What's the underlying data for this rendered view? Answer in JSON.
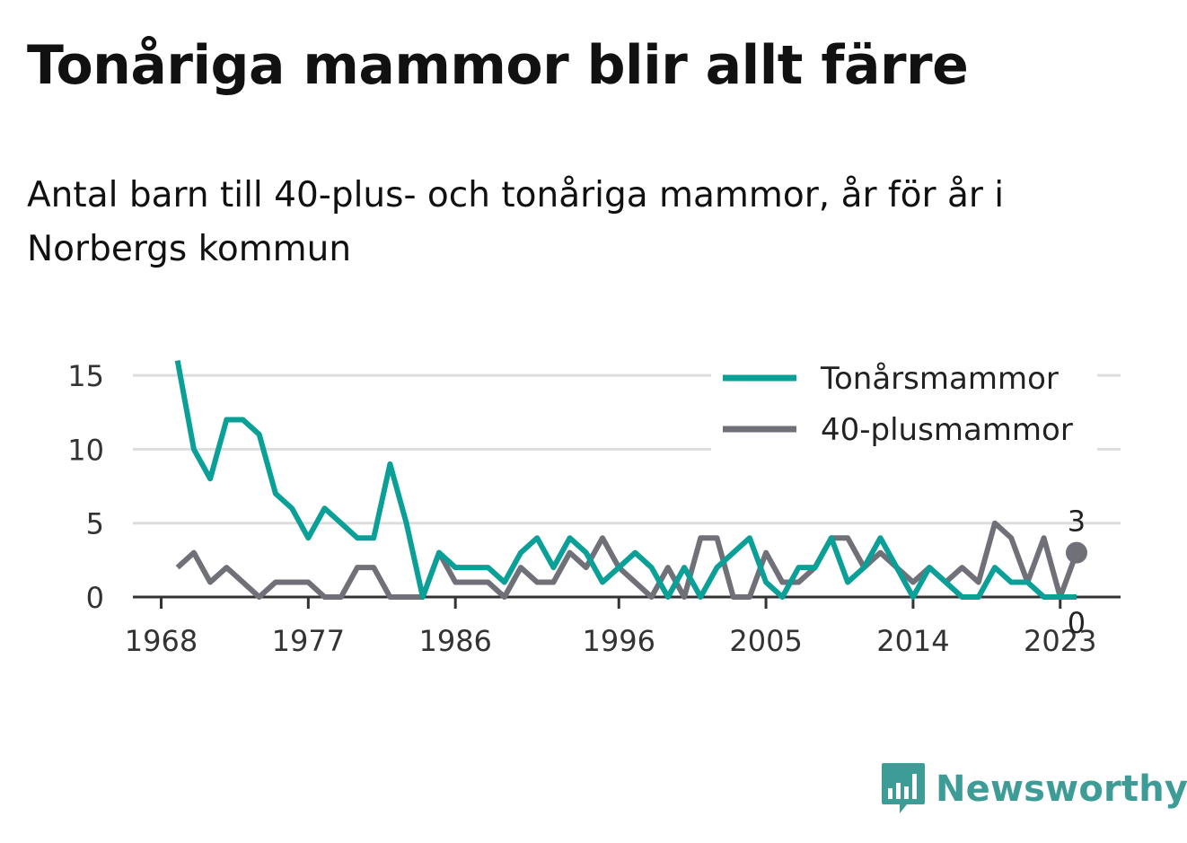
{
  "title": "Tonåriga mammor blir allt färre",
  "subtitle": "Antal barn till 40-plus- och tonåriga mammor, år för år i Norbergs kommun",
  "logo_text": "Newsworthy",
  "colors": {
    "teen": "#0aa098",
    "plus40": "#707078",
    "grid": "#dddddd",
    "axis": "#333333",
    "logo": "#3e9c97"
  },
  "chart_data": {
    "type": "line",
    "x": [
      1969,
      1970,
      1971,
      1972,
      1973,
      1974,
      1975,
      1976,
      1977,
      1978,
      1979,
      1980,
      1981,
      1982,
      1983,
      1984,
      1985,
      1986,
      1987,
      1988,
      1989,
      1990,
      1991,
      1992,
      1993,
      1994,
      1995,
      1996,
      1997,
      1998,
      1999,
      2000,
      2001,
      2002,
      2003,
      2004,
      2005,
      2006,
      2007,
      2008,
      2009,
      2010,
      2011,
      2012,
      2013,
      2014,
      2015,
      2016,
      2017,
      2018,
      2019,
      2020,
      2021,
      2022,
      2023,
      2024
    ],
    "series": [
      {
        "name": "Tonårsmammor",
        "color": "#0aa098",
        "values": [
          16,
          10,
          8,
          12,
          12,
          11,
          7,
          6,
          4,
          6,
          5,
          4,
          4,
          9,
          5,
          0,
          3,
          2,
          2,
          2,
          1,
          3,
          4,
          2,
          4,
          3,
          1,
          2,
          3,
          2,
          0,
          2,
          0,
          2,
          3,
          4,
          1,
          0,
          2,
          2,
          4,
          1,
          2,
          4,
          2,
          0,
          2,
          1,
          0,
          0,
          2,
          1,
          1,
          0,
          0,
          0
        ]
      },
      {
        "name": "40-plusmammor",
        "color": "#707078",
        "values": [
          2,
          3,
          1,
          2,
          1,
          0,
          1,
          1,
          1,
          0,
          0,
          2,
          2,
          0,
          0,
          0,
          3,
          1,
          1,
          1,
          0,
          2,
          1,
          1,
          3,
          2,
          4,
          2,
          1,
          0,
          2,
          0,
          4,
          4,
          0,
          0,
          3,
          1,
          1,
          2,
          4,
          4,
          2,
          3,
          2,
          1,
          2,
          1,
          2,
          1,
          5,
          4,
          1,
          4,
          0,
          3
        ]
      }
    ],
    "x_ticks": [
      "1968",
      "1977",
      "1986",
      "1996",
      "2005",
      "2014",
      "2023"
    ],
    "y_ticks": [
      "0",
      "5",
      "10",
      "15"
    ],
    "ylim": [
      0,
      16
    ],
    "end_labels": {
      "plus40": "3",
      "teen": "0"
    },
    "legend": [
      "Tonårsmammor",
      "40-plusmammor"
    ],
    "legend_position": "top-right",
    "grid": true
  }
}
